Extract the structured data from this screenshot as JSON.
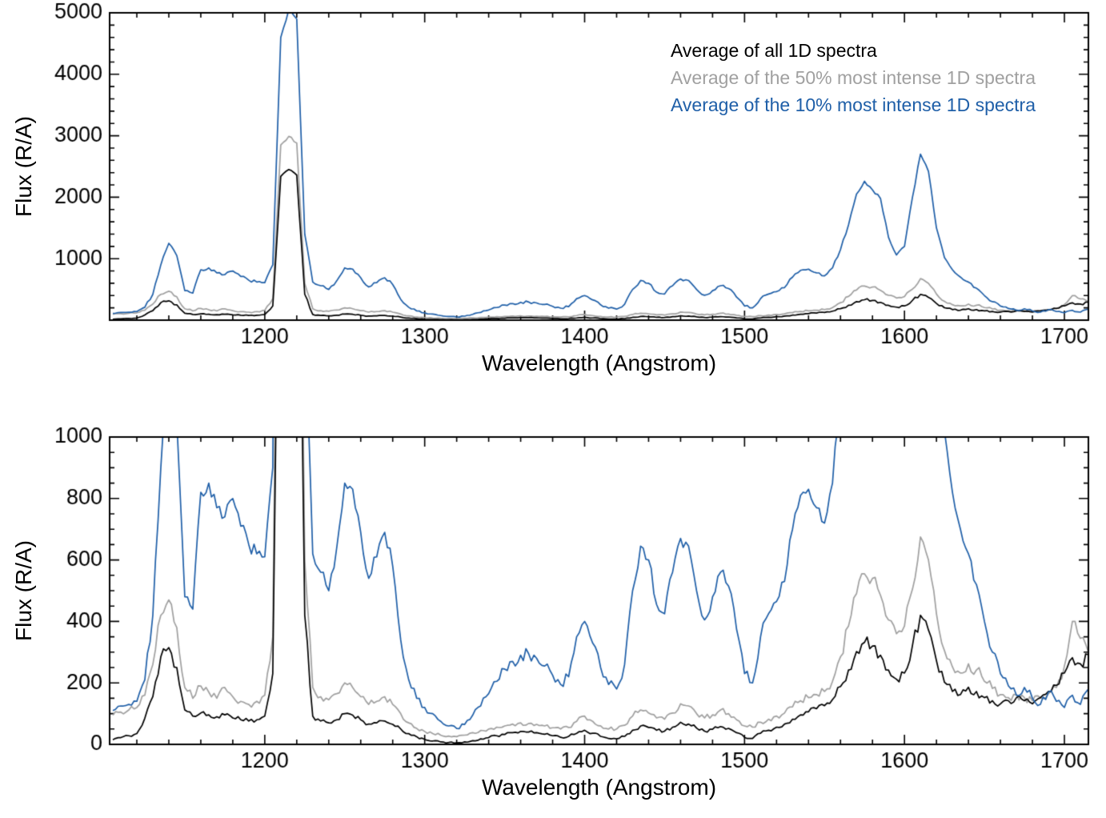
{
  "page": {
    "background": "#ffffff"
  },
  "chart_data": {
    "type": "line",
    "title": "",
    "grid": false,
    "legend_position": "upper right inside top panel",
    "xlim": [
      1103,
      1715
    ],
    "xticks": [
      1200,
      1300,
      1400,
      1500,
      1600,
      1700
    ],
    "x_minor_step": 20,
    "x": [
      1105,
      1110,
      1115,
      1120,
      1125,
      1130,
      1135,
      1140,
      1145,
      1150,
      1155,
      1160,
      1165,
      1170,
      1175,
      1180,
      1185,
      1190,
      1195,
      1200,
      1205,
      1210,
      1215,
      1220,
      1225,
      1230,
      1235,
      1240,
      1245,
      1250,
      1255,
      1260,
      1265,
      1270,
      1275,
      1280,
      1285,
      1290,
      1295,
      1300,
      1305,
      1310,
      1315,
      1320,
      1325,
      1330,
      1335,
      1340,
      1345,
      1350,
      1355,
      1360,
      1365,
      1370,
      1375,
      1380,
      1385,
      1390,
      1395,
      1400,
      1405,
      1410,
      1415,
      1420,
      1425,
      1430,
      1435,
      1440,
      1445,
      1450,
      1455,
      1460,
      1465,
      1470,
      1475,
      1480,
      1485,
      1490,
      1495,
      1500,
      1505,
      1510,
      1515,
      1520,
      1525,
      1530,
      1535,
      1540,
      1545,
      1550,
      1555,
      1560,
      1565,
      1570,
      1575,
      1580,
      1585,
      1590,
      1595,
      1600,
      1605,
      1610,
      1615,
      1620,
      1625,
      1630,
      1635,
      1640,
      1645,
      1650,
      1655,
      1660,
      1665,
      1670,
      1675,
      1680,
      1685,
      1690,
      1695,
      1700,
      1705,
      1710,
      1715,
      1720
    ],
    "series": [
      {
        "name": "Average of all 1D spectra",
        "color": "#000000",
        "values": [
          15,
          22,
          28,
          35,
          85,
          155,
          285,
          315,
          250,
          112,
          92,
          102,
          96,
          90,
          96,
          86,
          80,
          76,
          80,
          92,
          230,
          2340,
          2450,
          2360,
          420,
          92,
          76,
          70,
          80,
          100,
          95,
          80,
          66,
          70,
          76,
          65,
          50,
          35,
          25,
          16,
          11,
          8,
          6,
          5,
          8,
          12,
          18,
          22,
          28,
          32,
          38,
          42,
          40,
          38,
          33,
          28,
          23,
          26,
          36,
          46,
          36,
          26,
          19,
          18,
          26,
          46,
          60,
          55,
          46,
          43,
          56,
          72,
          66,
          53,
          43,
          49,
          58,
          52,
          38,
          23,
          19,
          36,
          46,
          56,
          66,
          82,
          96,
          106,
          116,
          126,
          146,
          188,
          242,
          302,
          332,
          320,
          290,
          242,
          212,
          232,
          322,
          420,
          372,
          272,
          202,
          172,
          162,
          186,
          172,
          152,
          142,
          132,
          142,
          152,
          142,
          132,
          152,
          172,
          192,
          232,
          282,
          262,
          292,
          252
        ]
      },
      {
        "name": "Average of the 50% most intense 1D spectra",
        "color": "#a0a0a0",
        "values": [
          95,
          105,
          112,
          120,
          160,
          260,
          420,
          470,
          380,
          185,
          150,
          190,
          170,
          150,
          185,
          155,
          140,
          130,
          140,
          160,
          350,
          2850,
          2990,
          2880,
          600,
          185,
          155,
          145,
          165,
          200,
          185,
          155,
          130,
          140,
          155,
          130,
          100,
          70,
          52,
          42,
          35,
          30,
          27,
          25,
          30,
          38,
          45,
          50,
          56,
          60,
          66,
          70,
          68,
          65,
          60,
          54,
          50,
          55,
          75,
          92,
          75,
          60,
          50,
          50,
          62,
          92,
          112,
          102,
          86,
          82,
          102,
          132,
          125,
          100,
          86,
          96,
          112,
          100,
          80,
          60,
          56,
          72,
          82,
          92,
          102,
          122,
          142,
          152,
          162,
          172,
          205,
          285,
          385,
          490,
          555,
          540,
          485,
          405,
          360,
          385,
          505,
          675,
          600,
          425,
          305,
          252,
          232,
          262,
          242,
          205,
          182,
          162,
          152,
          162,
          152,
          142,
          152,
          165,
          185,
          255,
          400,
          345,
          300,
          385
        ]
      },
      {
        "name": "Average of the 10% most intense 1D spectra",
        "color": "#1f5fa8",
        "values": [
          110,
          125,
          130,
          140,
          210,
          420,
          900,
          1250,
          1050,
          480,
          440,
          820,
          850,
          770,
          740,
          800,
          710,
          650,
          620,
          610,
          900,
          4600,
          5050,
          4900,
          1400,
          620,
          560,
          500,
          640,
          850,
          830,
          690,
          540,
          610,
          690,
          580,
          340,
          210,
          150,
          120,
          100,
          75,
          60,
          52,
          65,
          95,
          125,
          165,
          205,
          245,
          270,
          290,
          295,
          280,
          255,
          225,
          195,
          220,
          350,
          400,
          330,
          250,
          195,
          180,
          260,
          500,
          645,
          600,
          455,
          425,
          560,
          670,
          645,
          500,
          405,
          480,
          560,
          515,
          375,
          230,
          200,
          350,
          425,
          465,
          530,
          700,
          810,
          830,
          770,
          720,
          850,
          1150,
          1550,
          2050,
          2260,
          2120,
          1980,
          1350,
          1060,
          1200,
          2000,
          2700,
          2420,
          1500,
          1020,
          820,
          700,
          620,
          520,
          400,
          300,
          230,
          190,
          160,
          185,
          150,
          130,
          170,
          140,
          120,
          160,
          130,
          180,
          260
        ]
      }
    ],
    "panels": [
      {
        "xlabel": "Wavelength (Angstrom)",
        "ylabel": "Flux (R/A)",
        "ylim": [
          0,
          5000
        ],
        "yticks": [
          1000,
          2000,
          3000,
          4000,
          5000
        ],
        "y_minor_step": 200,
        "legend": true
      },
      {
        "xlabel": "Wavelength (Angstrom)",
        "ylabel": "Flux (R/A)",
        "ylim": [
          0,
          1000
        ],
        "yticks": [
          0,
          200,
          400,
          600,
          800,
          1000
        ],
        "y_minor_step": 50,
        "legend": false
      }
    ]
  }
}
